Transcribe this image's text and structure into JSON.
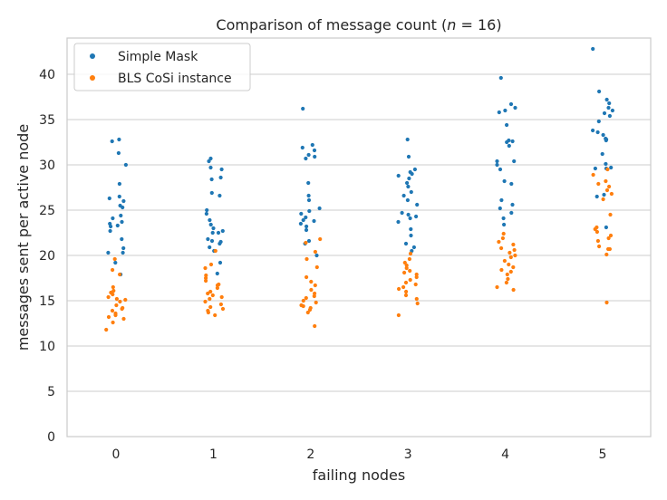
{
  "chart_data": {
    "type": "scatter",
    "title": "Comparison of message count (n = 16)",
    "xlabel": "failing nodes",
    "ylabel": "messages sent per active node",
    "categories": [
      "0",
      "1",
      "2",
      "3",
      "4",
      "5"
    ],
    "ylim": [
      0,
      44
    ],
    "yticks": [
      0,
      5,
      10,
      15,
      20,
      25,
      30,
      35,
      40
    ],
    "grid": true,
    "legend_position": "top-left",
    "series": [
      {
        "name": "Simple Mask",
        "color": "#1f77b4",
        "values": [
          [
            32.8,
            32.6,
            31.3,
            30.0,
            27.9,
            26.5,
            26.3,
            26.0,
            25.5,
            25.3,
            24.4,
            24.1,
            23.7,
            23.5,
            23.3,
            23.2,
            22.7,
            21.8,
            20.8,
            20.3,
            20.3,
            19.2,
            17.9
          ],
          [
            30.7,
            30.4,
            29.7,
            29.5,
            28.6,
            28.4,
            26.9,
            26.6,
            25.0,
            24.6,
            23.9,
            23.4,
            23.0,
            22.7,
            22.5,
            22.5,
            21.8,
            21.6,
            21.5,
            21.3,
            20.9,
            20.5,
            19.2,
            18.0
          ],
          [
            36.2,
            32.2,
            31.9,
            31.6,
            31.1,
            30.9,
            30.7,
            28.0,
            26.6,
            26.1,
            25.2,
            24.9,
            24.6,
            24.2,
            23.9,
            23.8,
            23.5,
            23.2,
            22.8,
            21.6,
            21.3,
            20.0
          ],
          [
            32.8,
            30.9,
            29.5,
            29.2,
            29.0,
            28.8,
            28.5,
            28.0,
            27.6,
            27.0,
            26.6,
            26.1,
            25.6,
            24.7,
            24.5,
            24.3,
            24.1,
            23.7,
            22.9,
            22.2,
            21.3,
            20.9,
            20.5
          ],
          [
            39.6,
            36.7,
            36.3,
            36.0,
            35.8,
            34.4,
            32.7,
            32.6,
            32.5,
            32.1,
            30.4,
            30.4,
            30.0,
            29.5,
            28.2,
            27.9,
            26.1,
            25.6,
            25.2,
            24.7,
            24.1,
            23.4
          ],
          [
            42.8,
            38.1,
            37.2,
            36.8,
            36.3,
            36.0,
            35.7,
            35.4,
            34.8,
            33.8,
            33.6,
            33.3,
            32.9,
            32.8,
            32.7,
            31.2,
            30.1,
            29.7,
            29.6,
            29.6,
            26.7,
            26.5,
            23.1
          ]
        ]
      },
      {
        "name": "BLS CoSi instance",
        "color": "#ff7f0e",
        "values": [
          [
            19.6,
            18.4,
            17.9,
            16.5,
            16.1,
            15.9,
            15.7,
            15.4,
            15.2,
            15.1,
            14.9,
            14.5,
            14.2,
            14.1,
            13.9,
            13.6,
            13.4,
            13.2,
            13.0,
            12.6,
            11.8
          ],
          [
            20.5,
            19.0,
            18.6,
            17.8,
            17.5,
            17.2,
            16.8,
            16.7,
            16.4,
            16.0,
            15.8,
            15.6,
            15.4,
            15.2,
            14.9,
            14.6,
            14.3,
            14.1,
            13.9,
            13.7,
            13.4
          ],
          [
            21.8,
            21.4,
            20.4,
            19.6,
            18.7,
            17.6,
            17.1,
            16.7,
            16.2,
            15.8,
            15.5,
            15.3,
            15.0,
            14.8,
            14.5,
            14.4,
            14.2,
            14.0,
            13.7,
            12.2
          ],
          [
            20.2,
            19.6,
            19.2,
            18.9,
            18.6,
            18.3,
            18.1,
            17.9,
            17.6,
            17.3,
            17.0,
            16.8,
            16.5,
            16.3,
            16.0,
            15.6,
            15.2,
            14.7,
            13.4
          ],
          [
            22.4,
            21.9,
            21.5,
            21.2,
            20.8,
            20.6,
            20.3,
            20.0,
            19.8,
            19.4,
            19.0,
            18.7,
            18.4,
            18.2,
            17.9,
            17.4,
            17.0,
            16.5,
            16.2
          ],
          [
            29.5,
            28.9,
            28.2,
            27.9,
            27.6,
            27.2,
            26.8,
            26.2,
            24.5,
            23.1,
            22.9,
            22.6,
            22.2,
            21.9,
            21.6,
            21.0,
            20.7,
            20.7,
            20.1,
            14.8
          ]
        ]
      }
    ]
  }
}
